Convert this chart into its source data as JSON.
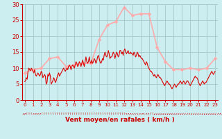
{
  "background_color": "#cceef0",
  "grid_color": "#aacccc",
  "line_color_avg": "#ffaaaa",
  "line_color_instant": "#dd0000",
  "marker_color_avg": "#ffaaaa",
  "xlabel": "Vent moyen/en rafales ( km/h )",
  "xlabel_color": "#cc0000",
  "tick_color": "#cc0000",
  "ylim": [
    0,
    30
  ],
  "yticks": [
    0,
    5,
    10,
    15,
    20,
    25,
    30
  ],
  "avg_values": [
    8.5,
    9.5,
    10.0,
    13.0,
    13.5,
    10.5,
    11.0,
    11.5,
    11.5,
    19.0,
    23.5,
    24.5,
    29.0,
    26.5,
    27.0,
    27.0,
    16.5,
    12.0,
    9.5,
    9.5,
    10.0,
    9.5,
    10.0,
    13.0
  ],
  "instant_y": [
    5.8,
    6.0,
    7.0,
    6.5,
    9.0,
    10.0,
    9.5,
    9.2,
    10.0,
    9.5,
    9.0,
    8.5,
    9.5,
    8.0,
    7.5,
    8.0,
    8.5,
    8.0,
    7.5,
    8.0,
    9.0,
    8.5,
    7.0,
    7.5,
    8.0,
    7.5,
    5.0,
    5.5,
    8.0,
    7.5,
    8.5,
    7.5,
    5.0,
    5.5,
    6.0,
    7.0,
    6.5,
    5.5,
    6.0,
    7.0,
    8.0,
    8.5,
    7.5,
    8.0,
    8.5,
    9.0,
    9.5,
    10.0,
    9.5,
    9.0,
    9.5,
    10.0,
    9.5,
    10.5,
    11.0,
    10.5,
    9.5,
    10.5,
    11.0,
    10.5,
    10.0,
    11.0,
    12.0,
    11.5,
    10.5,
    11.0,
    12.0,
    11.5,
    10.5,
    11.5,
    12.5,
    11.5,
    10.5,
    12.0,
    13.5,
    12.0,
    11.5,
    12.0,
    13.5,
    12.0,
    11.5,
    12.5,
    11.5,
    12.0,
    13.0,
    12.5,
    11.5,
    12.0,
    13.5,
    14.0,
    13.0,
    12.0,
    11.5,
    12.0,
    13.0,
    12.5,
    14.0,
    15.0,
    14.0,
    13.5,
    14.0,
    15.5,
    14.5,
    13.0,
    13.5,
    13.5,
    14.0,
    15.0,
    14.5,
    13.0,
    14.0,
    15.0,
    14.5,
    13.5,
    14.0,
    15.5,
    15.5,
    14.5,
    15.0,
    14.0,
    15.5,
    16.0,
    15.0,
    14.5,
    15.0,
    15.5,
    14.5,
    14.5,
    15.0,
    14.5,
    14.5,
    14.0,
    15.0,
    14.5,
    13.5,
    14.0,
    15.0,
    14.5,
    13.5,
    14.0,
    13.5,
    13.0,
    13.0,
    12.5,
    12.0,
    11.5,
    11.0,
    12.0,
    11.5,
    10.5,
    10.0,
    9.5,
    9.0,
    9.0,
    8.5,
    8.0,
    7.5,
    8.0,
    7.5,
    7.0,
    7.5,
    8.0,
    7.5,
    7.0,
    7.0,
    6.5,
    6.0,
    5.5,
    5.0,
    4.5,
    5.0,
    5.5,
    6.0,
    5.5,
    5.0,
    5.0,
    4.5,
    4.0,
    3.5,
    4.0,
    4.5,
    5.0,
    4.5,
    4.0,
    4.5,
    5.0,
    5.0,
    5.5,
    6.0,
    5.5,
    5.0,
    5.5,
    6.0,
    5.5,
    5.0,
    5.5,
    6.0,
    6.0,
    5.5,
    5.0,
    4.5,
    5.0,
    5.5,
    6.0,
    6.5,
    7.0,
    7.5,
    7.0,
    7.0,
    6.5,
    5.5,
    5.0,
    4.5,
    5.0,
    5.5,
    6.0,
    5.5,
    5.0,
    5.5,
    5.5,
    6.0,
    6.5,
    7.0,
    7.5,
    8.0,
    8.5,
    9.0,
    8.5,
    8.0,
    8.5,
    9.0
  ]
}
